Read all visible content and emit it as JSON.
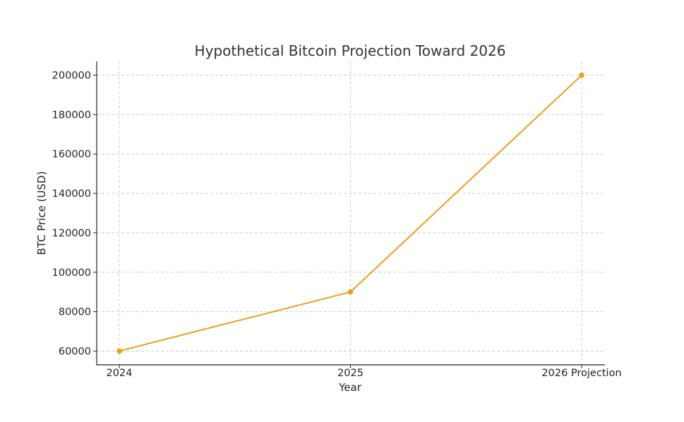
{
  "chart_data": {
    "type": "line",
    "title": "Hypothetical Bitcoin Projection Toward 2026",
    "xlabel": "Year",
    "ylabel": "BTC Price (USD)",
    "categories": [
      "2024",
      "2025",
      "2026 Projection"
    ],
    "series": [
      {
        "values": [
          60000,
          90000,
          200000
        ],
        "color": "#e5a11c"
      }
    ],
    "ylim": [
      53000,
      207000
    ],
    "yticks": [
      60000,
      80000,
      100000,
      120000,
      140000,
      160000,
      180000,
      200000
    ],
    "grid": true,
    "legend": "none"
  }
}
